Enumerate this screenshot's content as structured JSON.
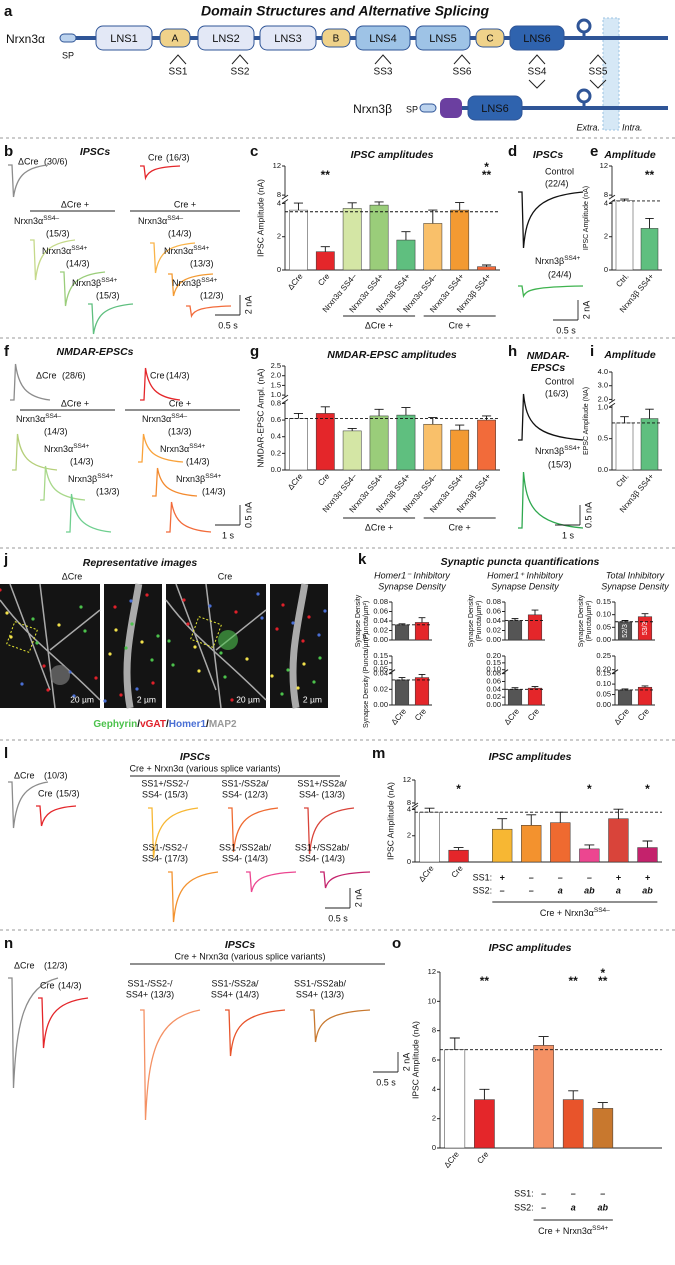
{
  "panel_letters": [
    "a",
    "b",
    "c",
    "d",
    "e",
    "f",
    "g",
    "h",
    "i",
    "j",
    "k",
    "l",
    "m",
    "n",
    "o"
  ],
  "domains": {
    "title": "Domain Structures and Alternative Splicing",
    "alpha": "Nrxn3α",
    "beta": "Nrxn3β",
    "alpha_sp": "SP",
    "beta_sp": "SP",
    "boxes": [
      "LNS1",
      "A",
      "LNS2",
      "LNS3",
      "B",
      "LNS4",
      "LNS5",
      "C",
      "LNS6"
    ],
    "beta_box": "LNS6",
    "splice_sites": [
      "SS1",
      "SS2",
      "SS3",
      "SS6",
      "SS4",
      "SS5"
    ],
    "extracellular": "Extra.",
    "intracellular": "Intra."
  },
  "trace_panels": {
    "b": {
      "title": "IPSCs",
      "traces": [
        {
          "name": "ΔCre",
          "n": "(30/6)",
          "color": "#8c8c8c"
        },
        {
          "name": "Cre",
          "n": "(16/3)",
          "color": "#e4262a"
        },
        {
          "name": "Nrxn3α",
          "sup": "SS4–",
          "n": "(15/3)",
          "color": "#c5d98a"
        },
        {
          "name": "Nrxn3α",
          "sup": "SS4+",
          "n": "(14/3)",
          "color": "#9acd7a"
        },
        {
          "name": "Nrxn3β",
          "sup": "SS4+",
          "n": "(15/3)",
          "color": "#5fbf7f"
        },
        {
          "name": "Nrxn3α",
          "sup": "SS4–",
          "n": "(14/3)",
          "color": "#f9b44a"
        },
        {
          "name": "Nrxn3α",
          "sup": "SS4+",
          "n": "(13/3)",
          "color": "#f39a32"
        },
        {
          "name": "Nrxn3β",
          "sup": "SS4+",
          "n": "(12/3)",
          "color": "#f26b3a"
        }
      ],
      "groups": [
        "ΔCre +",
        "Cre +"
      ],
      "scale_y": "2 nA",
      "scale_x": "0.5 s"
    },
    "d": {
      "title": "IPSCs",
      "traces": [
        {
          "name": "Control",
          "n": "(22/4)",
          "color": "#111111"
        },
        {
          "name": "Nrxn3β",
          "sup": "SS4+",
          "n": "(24/4)",
          "color": "#3fb34f"
        }
      ],
      "scale_y": "2 nA",
      "scale_x": "0.5 s"
    },
    "f": {
      "title": "NMDAR-EPSCs",
      "traces": [
        {
          "name": "ΔCre",
          "n": "(28/6)",
          "color": "#8c8c8c"
        },
        {
          "name": "Cre",
          "n": "(14/3)",
          "color": "#e4262a"
        },
        {
          "name": "Nrxn3α",
          "sup": "SS4–",
          "n": "(14/3)",
          "color": "#b5cf7a"
        },
        {
          "name": "Nrxn3α",
          "sup": "SS4+",
          "n": "(14/3)",
          "color": "#a8d88a"
        },
        {
          "name": "Nrxn3β",
          "sup": "SS4+",
          "n": "(13/3)",
          "color": "#6fcf8f"
        },
        {
          "name": "Nrxn3α",
          "sup": "SS4–",
          "n": "(13/3)",
          "color": "#f9a23a"
        },
        {
          "name": "Nrxn3α",
          "sup": "SS4+",
          "n": "(14/3)",
          "color": "#f38a2e"
        },
        {
          "name": "Nrxn3β",
          "sup": "SS4+",
          "n": "(14/3)",
          "color": "#f26b3a"
        }
      ],
      "groups": [
        "ΔCre +",
        "Cre +"
      ],
      "scale_y": "0.5 nA",
      "scale_x": "1 s"
    },
    "h": {
      "title": [
        "NMDAR-",
        "EPSCs"
      ],
      "traces": [
        {
          "name": "Control",
          "n": "(16/3)",
          "color": "#111111"
        },
        {
          "name": "Nrxn3β",
          "sup": "SS4+",
          "n": "(15/3)",
          "color": "#2fa84f"
        }
      ],
      "scale_y": "0.5 nA",
      "scale_x": "1 s"
    },
    "l": {
      "title": "IPSCs",
      "subtitle": "Cre + Nrxn3α (various splice variants)",
      "traces": [
        {
          "name": "ΔCre",
          "n": "(10/3)",
          "color": "#8c8c8c"
        },
        {
          "name": "Cre",
          "n": "(15/3)",
          "color": "#e4262a"
        },
        {
          "lines": [
            "SS1+/SS2-/",
            "SS4- (15/3)"
          ],
          "color": "#f7b733"
        },
        {
          "lines": [
            "SS1-/SS2a/",
            "SS4- (12/3)"
          ],
          "color": "#ef6a30"
        },
        {
          "lines": [
            "SS1+/SS2a/",
            "SS4- (13/3)"
          ],
          "color": "#d9443a"
        },
        {
          "lines": [
            "SS1-/SS2-/",
            "SS4- (17/3)"
          ],
          "color": "#f3922e"
        },
        {
          "lines": [
            "SS1-/SS2ab/",
            "SS4- (14/3)"
          ],
          "color": "#ec4690"
        },
        {
          "lines": [
            "SS1+/SS2ab/",
            "SS4- (14/3)"
          ],
          "color": "#c4226c"
        }
      ],
      "scale_y": "2 nA",
      "scale_x": "0.5 s"
    },
    "n": {
      "title": "IPSCs",
      "subtitle": "Cre + Nrxn3α (various splice variants)",
      "traces": [
        {
          "name": "ΔCre",
          "n": "(12/3)",
          "color": "#8c8c8c"
        },
        {
          "name": "Cre",
          "n": "(14/3)",
          "color": "#e4262a"
        },
        {
          "lines": [
            "SS1-/SS2-/",
            "SS4+ (13/3)"
          ],
          "color": "#f49164"
        },
        {
          "lines": [
            "SS1-/SS2a/",
            "SS4+ (14/3)"
          ],
          "color": "#e8542b"
        },
        {
          "lines": [
            "SS1-/SS2ab/",
            "SS4+ (13/3)"
          ],
          "color": "#c8782e"
        }
      ],
      "scale_y": "2 nA",
      "scale_x": "0.5 s"
    }
  },
  "images": {
    "title": "Representative images",
    "conditions": [
      "ΔCre",
      "Cre"
    ],
    "scale_labels": [
      "20 µm",
      "2 µm",
      "20 µm",
      "2 µm"
    ],
    "stains": [
      {
        "name": "Gephyrin",
        "color": "#4cc24c"
      },
      {
        "name": "vGAT",
        "color": "#e0202a"
      },
      {
        "name": "Homer1",
        "color": "#4a6fd4"
      },
      {
        "name": "MAP2",
        "color": "#999999"
      }
    ],
    "separator": "/"
  },
  "quantification_title": "Synaptic puncta quantifications",
  "chart_data": [
    {
      "type": "bar",
      "title": "IPSC amplitudes",
      "ylabel": "IPSC Amplitude (nA)",
      "categories": [
        "ΔCre",
        "Cre",
        "Nrxn3α SS4–",
        "Nrxn3α SS4+",
        "Nrxn3β SS4+",
        "Nrxn3α SS4–",
        "Nrxn3α SS4+",
        "Nrxn3β SS4+"
      ],
      "values": [
        3.6,
        1.1,
        3.7,
        3.9,
        1.8,
        2.8,
        3.6,
        0.2
      ],
      "errors": [
        0.6,
        0.3,
        0.6,
        0.8,
        0.5,
        0.8,
        0.8,
        0.1
      ],
      "colors": [
        "#ffffff",
        "#e4262a",
        "#d4e6a5",
        "#9acd7a",
        "#5fbf7f",
        "#f9c06a",
        "#f39a32",
        "#f26b3a"
      ],
      "ylim": [
        0,
        12
      ],
      "yticks": [
        0,
        2,
        4,
        8,
        12
      ],
      "ybreak": [
        4,
        8
      ],
      "reference_line": 3.5,
      "significance": [
        null,
        [
          "**"
        ],
        null,
        null,
        null,
        null,
        null,
        [
          "*",
          "**"
        ]
      ],
      "groups": [
        "ΔCre +",
        "Cre +"
      ]
    },
    {
      "type": "bar",
      "title": "Amplitude",
      "ylabel": "IPSC Amplitude (nA)",
      "categories": [
        "Ctrl.",
        "Nrxn3β SS4+"
      ],
      "values": [
        5.3,
        2.5
      ],
      "errors": [
        0.8,
        0.6
      ],
      "colors": [
        "#ffffff",
        "#5fbf7f"
      ],
      "ylim": [
        0,
        12
      ],
      "yticks": [
        0,
        2,
        4,
        8,
        12
      ],
      "ybreak": [
        4,
        8
      ],
      "reference_line": 5.2,
      "significance": [
        null,
        [
          "**"
        ]
      ]
    },
    {
      "type": "bar",
      "title": "NMDAR-EPSC amplitudes",
      "ylabel": "NMDAR-EPSC Ampl. (nA)",
      "categories": [
        "ΔCre",
        "Cre",
        "Nrxn3α SS4–",
        "Nrxn3α SS4+",
        "Nrxn3β SS4+",
        "Nrxn3α SS4–",
        "Nrxn3α SS4+",
        "Nrxn3β SS4+"
      ],
      "values": [
        0.62,
        0.68,
        0.47,
        0.65,
        0.66,
        0.55,
        0.48,
        0.6
      ],
      "errors": [
        0.06,
        0.08,
        0.03,
        0.08,
        0.09,
        0.08,
        0.06,
        0.05
      ],
      "colors": [
        "#ffffff",
        "#e4262a",
        "#d4e6a5",
        "#9acd7a",
        "#5fbf7f",
        "#f9c06a",
        "#f39a32",
        "#f26b3a"
      ],
      "ylim": [
        0,
        2.5
      ],
      "yticks": [
        {
          "value": 0,
          "label": "0.0"
        },
        0.2,
        0.4,
        0.6,
        0.8,
        {
          "value": 1,
          "label": "1.0"
        },
        1.5,
        {
          "value": 2,
          "label": "2.0"
        },
        2.5
      ],
      "ybreak": [
        0.8,
        1
      ],
      "reference_line": 0.62,
      "groups": [
        "ΔCre +",
        "Cre +"
      ]
    },
    {
      "type": "bar",
      "title": "Amplitude",
      "ylabel": "EPSC Amplitude (NA)",
      "categories": [
        "Ctrl.",
        "Nrxn3β SS4+"
      ],
      "values": [
        0.75,
        0.82
      ],
      "errors": [
        0.1,
        0.15
      ],
      "colors": [
        "#ffffff",
        "#5fbf7f"
      ],
      "ylim": [
        0,
        4
      ],
      "yticks": [
        {
          "value": 0,
          "label": "0.0"
        },
        0.5,
        {
          "value": 1,
          "label": "1.0"
        },
        {
          "value": 2,
          "label": "2.0"
        },
        {
          "value": 3,
          "label": "3.0"
        },
        {
          "value": 4,
          "label": "4.0"
        }
      ],
      "ybreak": [
        1,
        2
      ],
      "reference_line": 0.75
    },
    {
      "type": "bar",
      "title": [
        "Homer1⁻ Inhibitory",
        "Synapse Density"
      ],
      "ylabel": [
        "Synapse Density",
        "(Puncta/µm²)"
      ],
      "categories": [
        null,
        null
      ],
      "values": [
        0.032,
        0.037
      ],
      "errors": [
        0.002,
        0.01
      ],
      "colors": [
        "#555555",
        "#e4262a"
      ],
      "ylim": [
        0,
        0.08
      ],
      "yticks": [
        {
          "value": 0,
          "label": "0.00"
        },
        0.02,
        0.04,
        0.06,
        0.08
      ],
      "reference_line": 0.032
    },
    {
      "type": "bar",
      "ylabel": "Synapse Density (Puncta/µm²)",
      "categories": [
        "ΔCre",
        "Cre"
      ],
      "values": [
        0.032,
        0.035
      ],
      "errors": [
        0.003,
        0.004
      ],
      "colors": [
        "#555555",
        "#e4262a"
      ],
      "ylim": [
        0,
        0.15
      ],
      "yticks": [
        {
          "value": 0,
          "label": "0.00"
        },
        0.02,
        0.04,
        0.05,
        {
          "value": 0.1,
          "label": "0.10"
        },
        0.15
      ],
      "ybreak": [
        0.04,
        0.05
      ],
      "reference_line": 0.032
    },
    {
      "type": "bar",
      "title": [
        "Homer1⁺ Inhibitory",
        "Synapse Density"
      ],
      "ylabel": [
        "Synapse Density",
        "(Puncta/µm²)"
      ],
      "categories": [
        null,
        null
      ],
      "values": [
        0.041,
        0.053
      ],
      "errors": [
        0.004,
        0.01
      ],
      "colors": [
        "#555555",
        "#e4262a"
      ],
      "ylim": [
        0,
        0.08
      ],
      "yticks": [
        {
          "value": 0,
          "label": "0.00"
        },
        0.02,
        0.04,
        0.06,
        0.08
      ],
      "reference_line": 0.041
    },
    {
      "type": "bar",
      "categories": [
        "ΔCre",
        "Cre"
      ],
      "values": [
        0.04,
        0.043
      ],
      "errors": [
        0.004,
        0.004
      ],
      "colors": [
        "#555555",
        "#e4262a"
      ],
      "ylim": [
        0,
        0.2
      ],
      "yticks": [
        {
          "value": 0,
          "label": "0.00"
        },
        0.02,
        0.04,
        0.06,
        0.08,
        {
          "value": 0.1,
          "label": "0.10"
        },
        0.15,
        {
          "value": 0.2,
          "label": "0.20"
        }
      ],
      "ybreak": [
        0.08,
        0.1
      ],
      "reference_line": 0.04
    },
    {
      "type": "bar",
      "title": [
        "Total Inhibitory",
        "Synapse Density"
      ],
      "ylabel": [
        "Synapse Density",
        "(Puncta/µm²)"
      ],
      "categories": [
        null,
        null
      ],
      "values": [
        0.072,
        0.092
      ],
      "errors": [
        0.005,
        0.012
      ],
      "colors": [
        "#555555",
        "#e4262a"
      ],
      "ylim": [
        0,
        0.15
      ],
      "yticks": [
        {
          "value": 0,
          "label": "0.00"
        },
        0.05,
        {
          "value": 0.1,
          "label": "0.10"
        },
        0.15
      ],
      "reference_line": 0.072,
      "bar_labels": [
        "52/3",
        "53/3"
      ]
    },
    {
      "type": "bar",
      "categories": [
        "ΔCre",
        "Cre"
      ],
      "values": [
        0.072,
        0.085
      ],
      "errors": [
        0.005,
        0.006
      ],
      "colors": [
        "#555555",
        "#e4262a"
      ],
      "ylim": [
        0,
        0.25
      ],
      "yticks": [
        {
          "value": 0,
          "label": "0.00"
        },
        0.05,
        {
          "value": 0.1,
          "label": "0.10"
        },
        0.15,
        {
          "value": 0.2,
          "label": "0.20"
        },
        0.25
      ],
      "ybreak": [
        0.15,
        0.2
      ],
      "reference_line": 0.072
    },
    {
      "type": "bar",
      "title": "IPSC amplitudes",
      "ylabel": "IPSC Amplitude (nA)",
      "categories": [
        "ΔCre",
        "Cre",
        null,
        null,
        null,
        null,
        null,
        null
      ],
      "values": [
        3.8,
        0.9,
        2.5,
        2.8,
        3.0,
        1.0,
        3.3,
        1.1
      ],
      "errors": [
        1.0,
        0.2,
        0.8,
        0.8,
        0.8,
        0.3,
        0.9,
        0.5
      ],
      "colors": [
        "#ffffff",
        "#e4262a",
        "#f7b733",
        "#f3922e",
        "#ef6a30",
        "#ec4690",
        "#d9443a",
        "#c4226c"
      ],
      "ylim": [
        0,
        12
      ],
      "yticks": [
        0,
        2,
        4,
        8,
        12
      ],
      "ybreak": [
        4,
        8
      ],
      "reference_line": 3.8,
      "significance": [
        null,
        [
          "*"
        ],
        null,
        null,
        null,
        [
          "*"
        ],
        null,
        [
          "*"
        ]
      ],
      "row_labels": [
        "SS1:",
        "SS2:"
      ],
      "rows": [
        [
          null,
          null,
          "+",
          "–",
          "–",
          "–",
          "+",
          "+"
        ],
        [
          null,
          null,
          "–",
          "–",
          "a",
          "ab",
          "a",
          "ab"
        ]
      ],
      "groups": [
        {
          "text": "Cre + Nrxn3α",
          "sup": "SS4–"
        }
      ]
    },
    {
      "type": "bar",
      "title": "IPSC amplitudes",
      "ylabel": "IPSC Amplitude (nA)",
      "categories": [
        "ΔCre",
        "Cre",
        null,
        null,
        null
      ],
      "values": [
        6.7,
        3.3,
        7.0,
        3.3,
        2.7
      ],
      "errors": [
        0.8,
        0.7,
        0.6,
        0.6,
        0.4
      ],
      "colors": [
        "#ffffff",
        "#e4262a",
        "#f49164",
        "#e8542b",
        "#c8782e"
      ],
      "ylim": [
        0,
        12
      ],
      "yticks": [
        0,
        2,
        4,
        6,
        8,
        10,
        12
      ],
      "reference_line": 6.7,
      "significance": [
        null,
        [
          "**"
        ],
        null,
        [
          "**"
        ],
        [
          "*",
          "**"
        ]
      ],
      "row_labels": [
        "SS1:",
        "SS2:"
      ],
      "rows": [
        [
          null,
          null,
          "–",
          "–",
          "–"
        ],
        [
          null,
          null,
          "–",
          "a",
          "ab"
        ]
      ],
      "groups": [
        {
          "text": "Cre + Nrxn3α",
          "sup": "SS4+"
        }
      ]
    }
  ]
}
